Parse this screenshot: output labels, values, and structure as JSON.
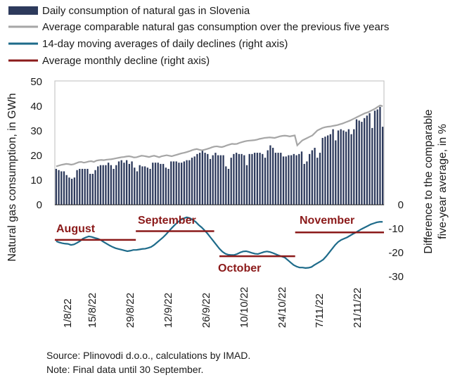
{
  "chart_data": {
    "type": "bar",
    "title": "",
    "legend": [
      {
        "key": "daily",
        "label": "Daily consumption of natural gas in Slovenia",
        "color": "#2d3a5c",
        "kind": "bar"
      },
      {
        "key": "avg5",
        "label": "Average comparable natural gas consumption over the previous five years",
        "color": "#a6a6a6",
        "kind": "line"
      },
      {
        "key": "ma14",
        "label": "14-day moving averages of daily declines (right axis)",
        "color": "#1e6b8a",
        "kind": "line"
      },
      {
        "key": "monthly",
        "label": "Average monthly decline (right axis)",
        "color": "#8b1a1a",
        "kind": "line"
      }
    ],
    "legend_position": "top",
    "y_left": {
      "label": "Natural gas consumption, in GWh",
      "min": 0,
      "max": 50,
      "ticks": [
        "0",
        "10",
        "20",
        "30",
        "40",
        "50"
      ]
    },
    "y_right": {
      "label_line1": "Difference to the comparable",
      "label_line2": "five-year average, in %",
      "min": -30,
      "max": 0,
      "ticks": [
        "0",
        "-10",
        "-20",
        "-30"
      ]
    },
    "x_ticks": [
      "1/8/22",
      "15/8/22",
      "29/8/22",
      "12/9/22",
      "26/9/22",
      "10/10/22",
      "24/10/22",
      "7/11/22",
      "21/11/22"
    ],
    "x_start": "2022-08-01",
    "x_end": "2022-12-04",
    "daily_consumption": [
      14.5,
      14,
      13.5,
      13.5,
      12,
      11,
      10.5,
      11,
      14,
      14.5,
      14.5,
      14.5,
      14.5,
      12.5,
      12.5,
      14,
      15.5,
      16,
      16,
      16,
      17,
      16,
      14.5,
      16,
      17.5,
      18,
      17,
      18,
      16.5,
      17.5,
      15,
      13.5,
      16,
      15.5,
      15.5,
      15,
      14.5,
      17,
      17,
      17,
      16.5,
      16.5,
      15,
      14.5,
      17.5,
      17.5,
      17.5,
      17,
      17,
      17.5,
      18,
      18,
      19,
      19.5,
      20.5,
      21,
      22,
      21,
      20.5,
      18.5,
      20,
      21,
      20,
      20,
      20,
      15.5,
      14.5,
      19,
      20.5,
      21,
      20.5,
      20.5,
      20,
      16,
      20.5,
      20.5,
      21,
      21,
      21,
      20.5,
      19,
      22,
      24,
      23,
      21,
      21,
      21,
      19.5,
      19.5,
      20,
      20,
      20.5,
      20,
      20.5,
      21.5,
      16.5,
      17.5,
      20.5,
      22,
      23,
      19,
      21,
      27,
      27.5,
      28,
      28.5,
      30.5,
      26,
      30,
      30.5,
      30,
      29.5,
      30.5,
      28.5,
      30.5,
      34.5,
      34,
      33.5,
      35,
      36,
      37,
      31,
      38,
      38.5,
      39.5,
      31.5
    ],
    "avg5_consumption": [
      15.5,
      15.8,
      16.1,
      16.3,
      16.5,
      16.4,
      16.2,
      16.4,
      16.8,
      17.2,
      17.3,
      17,
      17.2,
      17.5,
      17.6,
      17.3,
      17.8,
      18,
      18.1,
      18,
      18.2,
      18.3,
      18.4,
      18.6,
      18.8,
      19,
      19.2,
      19.3,
      19.5,
      19.6,
      19.4,
      19.1,
      19.2,
      19.5,
      19.8,
      19.7,
      19.5,
      19.3,
      19.6,
      19.8,
      19.5,
      19.2,
      19.6,
      19.8,
      20,
      19.8,
      19.6,
      19.9,
      20.2,
      20.5,
      20.8,
      21,
      21.3,
      21.6,
      22,
      22.3,
      22.5,
      22.2,
      22,
      22.2,
      22.5,
      22.8,
      23.2,
      23.5,
      23.6,
      23.4,
      23.3,
      23.6,
      24,
      24.3,
      24.6,
      24.5,
      24.6,
      25,
      25.3,
      25.6,
      25.8,
      25.9,
      26,
      26.1,
      26.3,
      26.6,
      26.8,
      27,
      27.1,
      27.2,
      27.1,
      27,
      27.3,
      27.6,
      27.8,
      27.9,
      27.8,
      27.6,
      27.8,
      28,
      24,
      25,
      26,
      26.5,
      27,
      27.5,
      28,
      29,
      30,
      30.5,
      31,
      31.3,
      31.5,
      31.6,
      31.8,
      32,
      32.2,
      32.5,
      32.8,
      33.2,
      33.6,
      34,
      34.5,
      35,
      35.5,
      36,
      36.5,
      37,
      37.3,
      37.8,
      38.3,
      38.8,
      39.5,
      40.1,
      39.8
    ],
    "ma14_decline": [
      -14.5,
      -15,
      -15.3,
      -15.5,
      -15.6,
      -16,
      -15.8,
      -15.2,
      -14.5,
      -13.5,
      -13,
      -12.6,
      -12.8,
      -13.2,
      -13.5,
      -14,
      -14.8,
      -15.5,
      -16.2,
      -16.8,
      -17.3,
      -17.6,
      -17.9,
      -18.2,
      -18.5,
      -18.3,
      -18,
      -18,
      -17.8,
      -17.6,
      -17.5,
      -17.2,
      -16.8,
      -16,
      -15,
      -14,
      -13,
      -11.8,
      -10.5,
      -9.2,
      -8,
      -6.9,
      -6,
      -5.4,
      -5,
      -5.3,
      -6,
      -6.8,
      -8,
      -9,
      -10.2,
      -11.5,
      -13,
      -14.5,
      -16,
      -17.5,
      -18.7,
      -19.5,
      -19.9,
      -20,
      -20,
      -19.6,
      -19,
      -18.6,
      -18.5,
      -18.8,
      -19.2,
      -19.5,
      -19.6,
      -19.2,
      -18.8,
      -18.6,
      -18.8,
      -19.2,
      -19.7,
      -20.2,
      -20.6,
      -21,
      -22,
      -23,
      -24,
      -24.6,
      -25,
      -25,
      -25.2,
      -25.1,
      -24.8,
      -24,
      -23.3,
      -22.6,
      -21.8,
      -20.5,
      -19,
      -17.5,
      -16,
      -14.8,
      -14,
      -13.5,
      -13,
      -12.3,
      -11.6,
      -11,
      -10.3,
      -9.6,
      -9,
      -8.4,
      -7.8,
      -7.4,
      -7,
      -6.8,
      -6.8
    ],
    "monthly_decline": [
      {
        "month": "August",
        "value": -14.0,
        "start": "2022-08-01",
        "end": "2022-08-31"
      },
      {
        "month": "September",
        "value": -10.5,
        "start": "2022-09-01",
        "end": "2022-09-30"
      },
      {
        "month": "October",
        "value": -20.5,
        "start": "2022-10-03",
        "end": "2022-10-31"
      },
      {
        "month": "November",
        "value": -11.0,
        "start": "2022-11-01",
        "end": "2022-12-04"
      }
    ],
    "notes": [
      "Source: Plinovodi d.o.o., calculations by IMAD.",
      "Note: Final data until 30 September."
    ]
  }
}
